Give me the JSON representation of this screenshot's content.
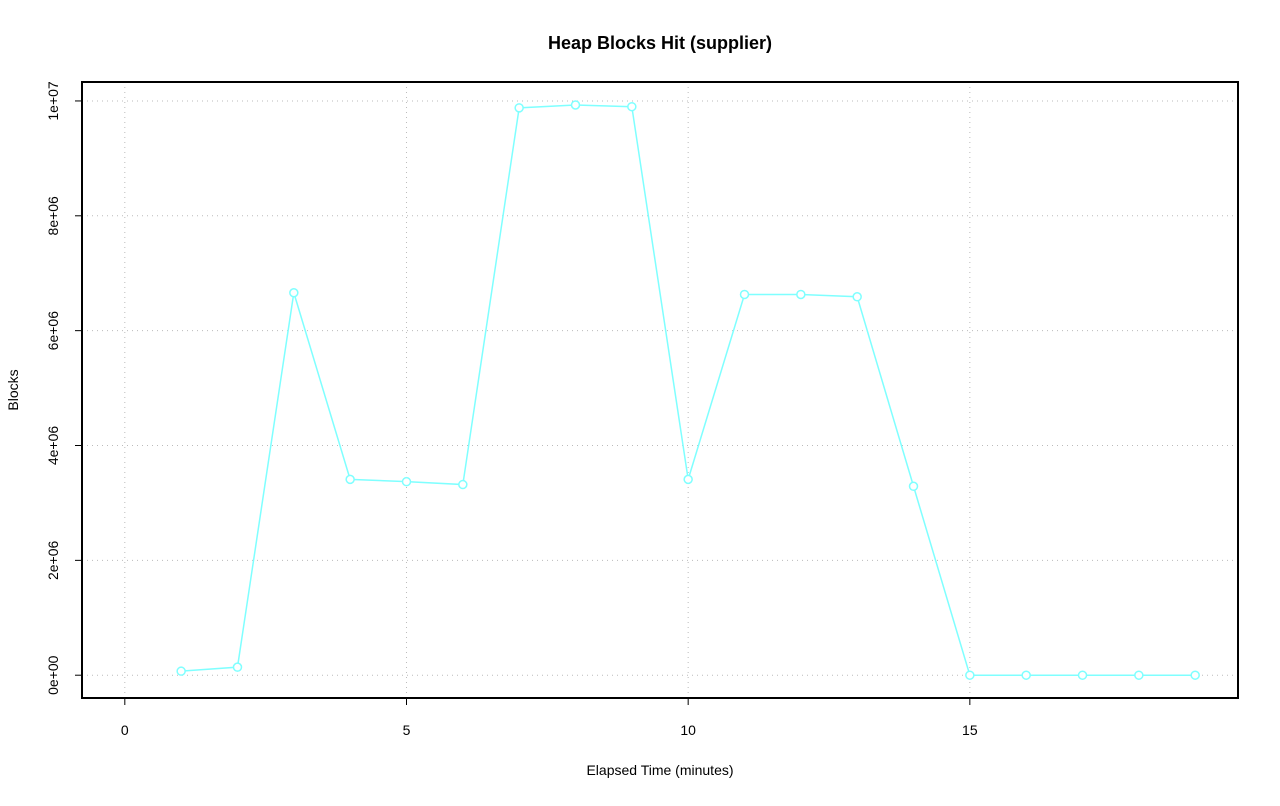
{
  "chart_data": {
    "type": "line",
    "title": "Heap Blocks Hit (supplier)",
    "x_label": "Elapsed Time (minutes)",
    "y_label": "Blocks",
    "x": [
      1,
      2,
      3,
      4,
      5,
      6,
      7,
      8,
      9,
      10,
      11,
      12,
      13,
      14,
      15,
      16,
      17,
      18,
      19
    ],
    "series": [
      {
        "name": "Blocks",
        "color": "#7fffff",
        "values": [
          70000,
          140000,
          6660000,
          3410000,
          3370000,
          3320000,
          9880000,
          9930000,
          9900000,
          3410000,
          6630000,
          6630000,
          6590000,
          3290000,
          0,
          0,
          0,
          0,
          0
        ]
      }
    ],
    "xlim": [
      -0.76,
      19.76
    ],
    "xticks": [
      0,
      5,
      10,
      15
    ],
    "ylim": [
      -397000,
      10330000
    ],
    "yticks": [
      {
        "value": 0,
        "label": "0e+00"
      },
      {
        "value": 2000000,
        "label": "2e+06"
      },
      {
        "value": 4000000,
        "label": "4e+06"
      },
      {
        "value": 6000000,
        "label": "6e+06"
      },
      {
        "value": 8000000,
        "label": "8e+06"
      },
      {
        "value": 10000000,
        "label": "1e+07"
      }
    ],
    "grid": true
  }
}
